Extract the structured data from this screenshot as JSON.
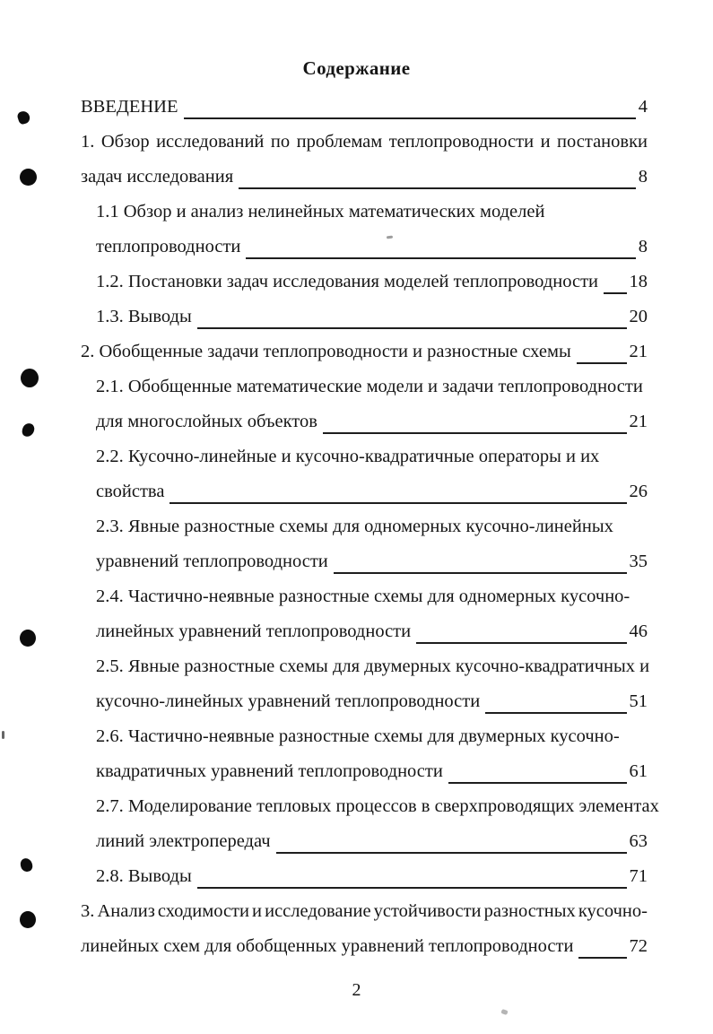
{
  "document": {
    "title": "Содержание",
    "footer_page_number": "2"
  },
  "toc": {
    "entries": [
      {
        "level": "chapter",
        "first_lines": [],
        "last_line": "ВВЕДЕНИЕ",
        "page": "4",
        "justified": false
      },
      {
        "level": "chapter",
        "first_lines": [
          "1. Обзор исследований по проблемам теплопроводности и постановки"
        ],
        "last_line": "задач исследования",
        "page": "8",
        "justified": true
      },
      {
        "level": "sub",
        "first_lines": [
          "1.1 Обзор и анализ нелинейных математических моделей"
        ],
        "last_line": "теплопроводности",
        "page": "8",
        "justified": false
      },
      {
        "level": "sub",
        "first_lines": [],
        "last_line": "1.2. Постановки задач исследования моделей теплопроводности",
        "page": "18",
        "justified": false
      },
      {
        "level": "sub",
        "first_lines": [],
        "last_line": "1.3. Выводы",
        "page": "20",
        "justified": false
      },
      {
        "level": "chapter",
        "first_lines": [],
        "last_line": "2. Обобщенные задачи теплопроводности  и разностные схемы",
        "page": "21",
        "justified": false
      },
      {
        "level": "sub",
        "first_lines": [
          "2.1. Обобщенные математические модели и задачи теплопроводности"
        ],
        "last_line": "для многослойных объектов",
        "page": "21",
        "justified": false
      },
      {
        "level": "sub",
        "first_lines": [
          "2.2. Кусочно-линейные и кусочно-квадратичные операторы и их"
        ],
        "last_line": "свойства",
        "page": "26",
        "justified": false
      },
      {
        "level": "sub",
        "first_lines": [
          "2.3. Явные разностные схемы для одномерных кусочно-линейных"
        ],
        "last_line": "уравнений теплопроводности",
        "page": "35",
        "justified": false
      },
      {
        "level": "sub",
        "first_lines": [
          "2.4. Частично-неявные разностные схемы для одномерных кусочно-"
        ],
        "last_line": "линейных уравнений теплопроводности",
        "page": "46",
        "justified": false
      },
      {
        "level": "sub",
        "first_lines": [
          "2.5. Явные разностные схемы для двумерных кусочно-квадратичных и"
        ],
        "last_line": "кусочно-линейных уравнений теплопроводности",
        "page": "51",
        "justified": false
      },
      {
        "level": "sub",
        "first_lines": [
          "2.6. Частично-неявные разностные схемы для двумерных кусочно-"
        ],
        "last_line": "квадратичных уравнений теплопроводности",
        "page": "61",
        "justified": false
      },
      {
        "level": "sub",
        "first_lines": [
          "2.7. Моделирование тепловых процессов в сверхпроводящих элементах"
        ],
        "last_line": "линий электропередач",
        "page": "63",
        "justified": false
      },
      {
        "level": "sub",
        "first_lines": [],
        "last_line": "2.8. Выводы",
        "page": "71",
        "justified": false
      },
      {
        "level": "chapter",
        "first_lines": [
          "3. Анализ сходимости и исследование устойчивости разностных кусочно-"
        ],
        "last_line": "линейных схем для обобщенных уравнений теплопроводности",
        "page": "72",
        "justified": true
      }
    ]
  }
}
